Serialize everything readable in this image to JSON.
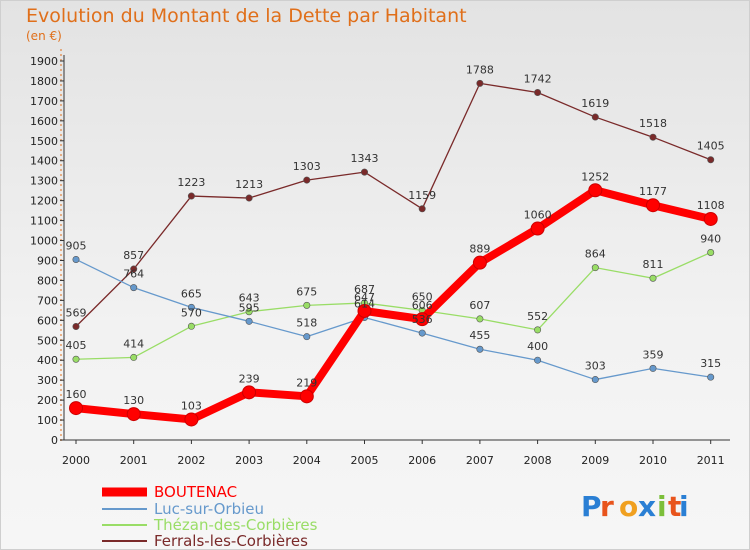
{
  "chart_data": {
    "type": "line",
    "title": "Evolution du Montant de la Dette par Habitant",
    "subtitle": "(en €)",
    "x": [
      "2000",
      "2001",
      "2002",
      "2003",
      "2004",
      "2005",
      "2006",
      "2007",
      "2008",
      "2009",
      "2010",
      "2011"
    ],
    "ylim": [
      0,
      1900
    ],
    "yticks": [
      0,
      100,
      200,
      300,
      400,
      500,
      600,
      700,
      800,
      900,
      1000,
      1100,
      1200,
      1300,
      1400,
      1500,
      1600,
      1700,
      1800,
      1900
    ],
    "grid": false,
    "legend_position": "bottom-left",
    "series": [
      {
        "name": "BOUTENAC",
        "color": "#ff0000",
        "values": [
          160,
          130,
          103,
          239,
          219,
          647,
          606,
          889,
          1060,
          1252,
          1177,
          1108
        ]
      },
      {
        "name": "Luc-sur-Orbieu",
        "color": "#6699cc",
        "values": [
          905,
          764,
          665,
          595,
          518,
          614,
          536,
          455,
          400,
          303,
          359,
          315
        ]
      },
      {
        "name": "Thézan-des-Corbières",
        "color": "#99dd66",
        "values": [
          405,
          414,
          570,
          643,
          675,
          687,
          650,
          607,
          552,
          864,
          811,
          940
        ]
      },
      {
        "name": "Ferrals-les-Corbières",
        "color": "#7a2a2a",
        "values": [
          569,
          857,
          1223,
          1213,
          1303,
          1343,
          1159,
          1788,
          1742,
          1619,
          1518,
          1405
        ]
      }
    ]
  },
  "logo": {
    "text": "Proxiti"
  }
}
